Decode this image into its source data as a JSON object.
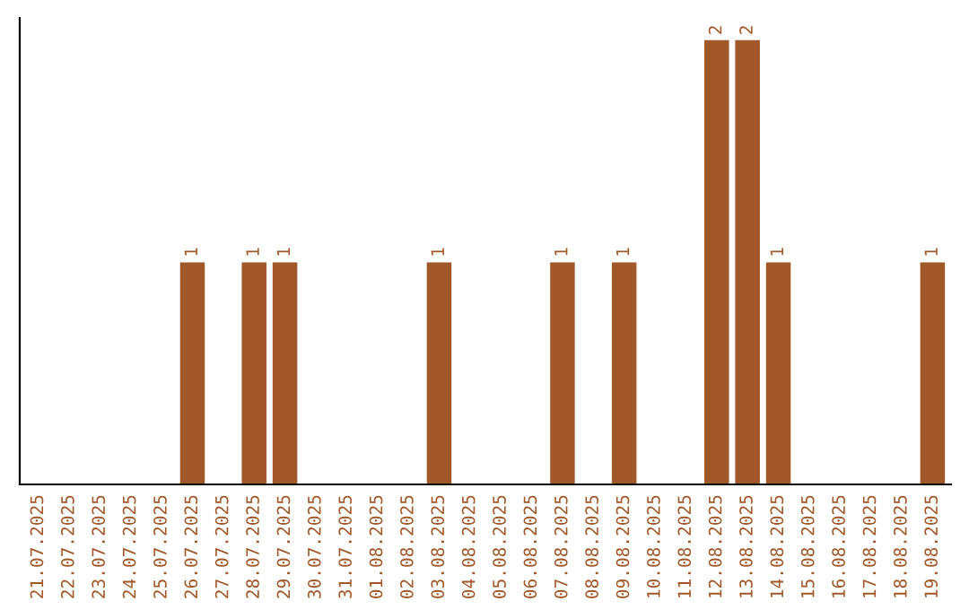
{
  "chart_data": {
    "type": "bar",
    "categories": [
      "21.07.2025",
      "22.07.2025",
      "23.07.2025",
      "24.07.2025",
      "25.07.2025",
      "26.07.2025",
      "27.07.2025",
      "28.07.2025",
      "29.07.2025",
      "30.07.2025",
      "31.07.2025",
      "01.08.2025",
      "02.08.2025",
      "03.08.2025",
      "04.08.2025",
      "05.08.2025",
      "06.08.2025",
      "07.08.2025",
      "08.08.2025",
      "09.08.2025",
      "10.08.2025",
      "11.08.2025",
      "12.08.2025",
      "13.08.2025",
      "14.08.2025",
      "15.08.2025",
      "16.08.2025",
      "17.08.2025",
      "18.08.2025",
      "19.08.2025"
    ],
    "values": [
      0,
      0,
      0,
      0,
      0,
      1,
      0,
      1,
      1,
      0,
      0,
      0,
      0,
      1,
      0,
      0,
      0,
      1,
      0,
      1,
      0,
      0,
      2,
      2,
      1,
      0,
      0,
      0,
      0,
      1
    ],
    "value_labels": [
      null,
      null,
      null,
      null,
      null,
      "1",
      null,
      "1",
      "1",
      null,
      null,
      null,
      null,
      "1",
      null,
      null,
      null,
      "1",
      null,
      "1",
      null,
      null,
      "2",
      "2",
      "1",
      null,
      null,
      null,
      null,
      "1"
    ],
    "color": "#a0582a",
    "tick_labels": "x",
    "grid": false,
    "legend": false
  }
}
